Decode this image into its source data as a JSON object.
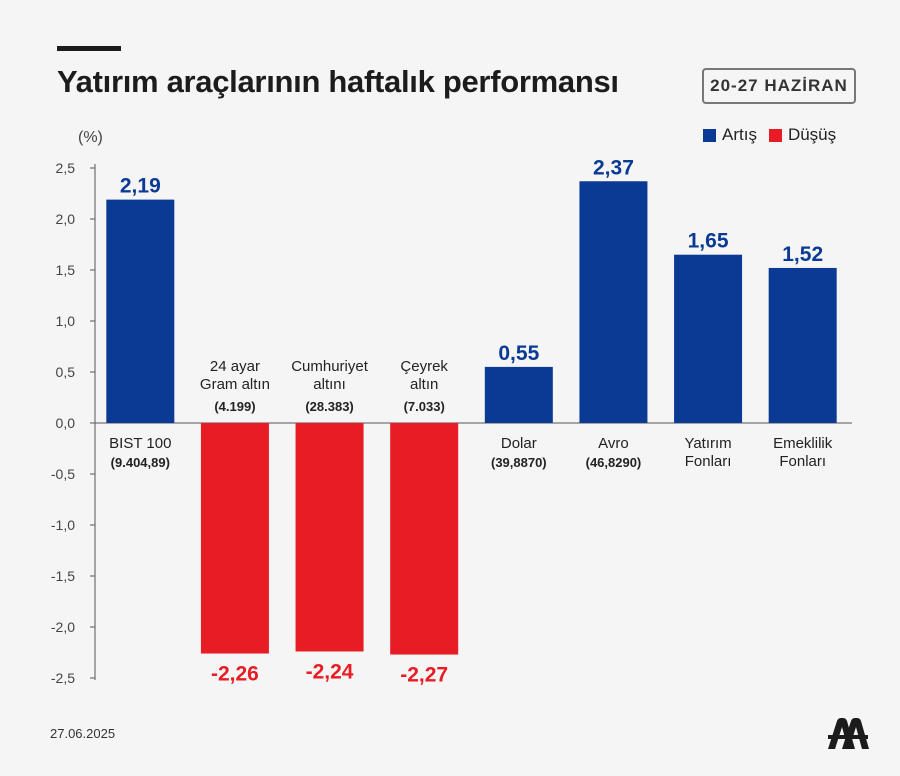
{
  "header": {
    "title": "Yatırım araçlarının haftalık performansı",
    "date_range": "20-27 HAZİRAN"
  },
  "legend": {
    "increase": {
      "label": "Artış",
      "color": "#0b3a94"
    },
    "decrease": {
      "label": "Düşüş",
      "color": "#e81c24"
    }
  },
  "footer": {
    "date": "27.06.2025",
    "logo": "aa-logo-icon"
  },
  "chart_data": {
    "type": "bar",
    "unit_label": "(%)",
    "ylim": [
      -2.5,
      2.5
    ],
    "yticks": [
      "2,5",
      "2,0",
      "1,5",
      "1,0",
      "0,5",
      "0,0",
      "-0,5",
      "-1,0",
      "-1,5",
      "-2,0",
      "-2,5"
    ],
    "ytick_values": [
      2.5,
      2.0,
      1.5,
      1.0,
      0.5,
      0.0,
      -0.5,
      -1.0,
      -1.5,
      -2.0,
      -2.5
    ],
    "grid": false,
    "legend_position": "top-right",
    "bars": [
      {
        "name_lines": [
          "BIST 100"
        ],
        "sub": "(9.404,89)",
        "value": 2.19,
        "label": "2,19"
      },
      {
        "name_lines": [
          "24 ayar",
          "Gram altın"
        ],
        "sub": "(4.199)",
        "value": -2.26,
        "label": "-2,26"
      },
      {
        "name_lines": [
          "Cumhuriyet",
          "altını"
        ],
        "sub": "(28.383)",
        "value": -2.24,
        "label": "-2,24"
      },
      {
        "name_lines": [
          "Çeyrek",
          "altın"
        ],
        "sub": "(7.033)",
        "value": -2.27,
        "label": "-2,27"
      },
      {
        "name_lines": [
          "Dolar"
        ],
        "sub": "(39,8870)",
        "value": 0.55,
        "label": "0,55"
      },
      {
        "name_lines": [
          "Avro"
        ],
        "sub": "(46,8290)",
        "value": 2.37,
        "label": "2,37"
      },
      {
        "name_lines": [
          "Yatırım",
          "Fonları"
        ],
        "sub": "",
        "value": 1.65,
        "label": "1,65"
      },
      {
        "name_lines": [
          "Emeklilik",
          "Fonları"
        ],
        "sub": "",
        "value": 1.52,
        "label": "1,52"
      }
    ]
  }
}
